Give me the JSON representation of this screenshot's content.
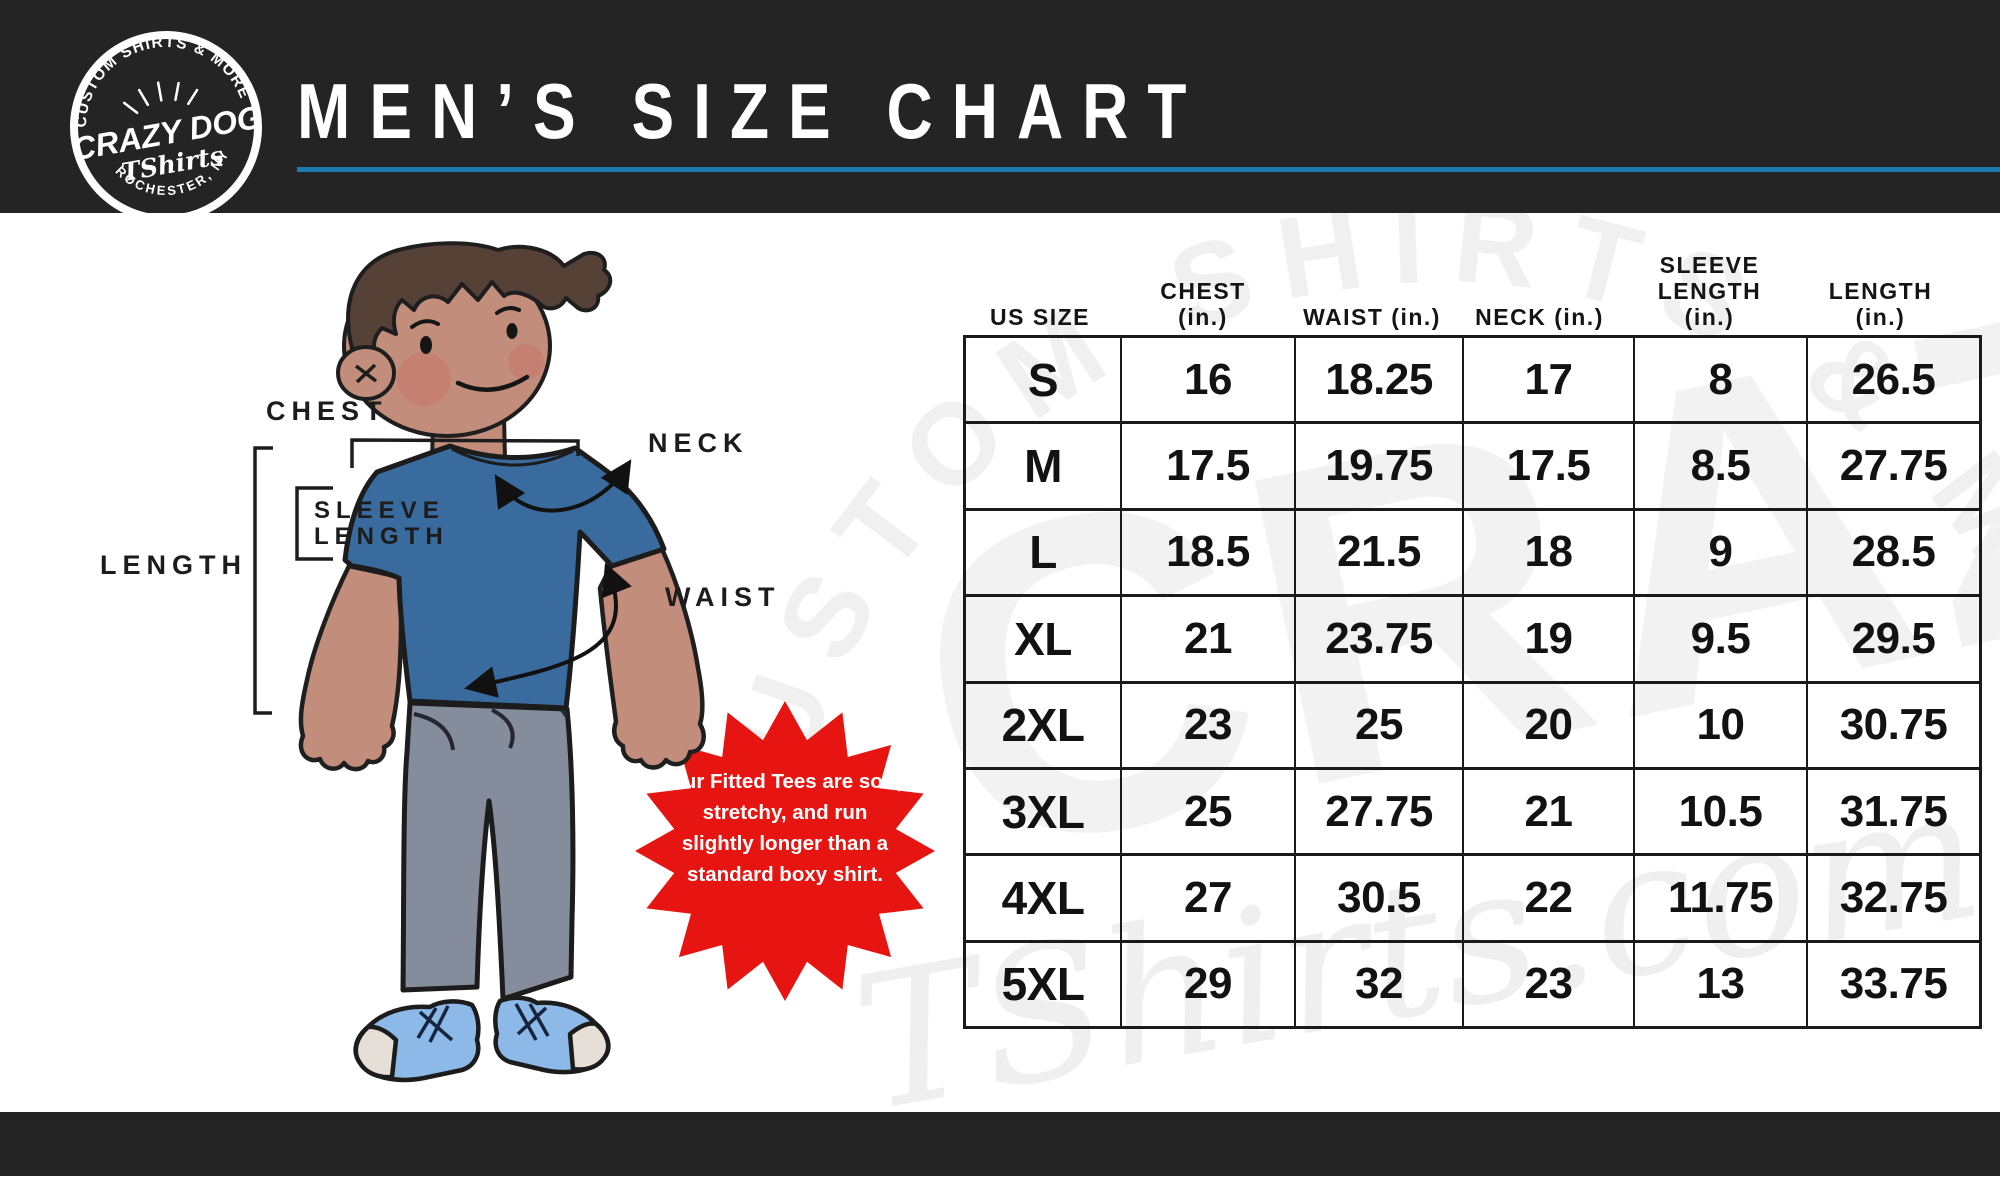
{
  "page": {
    "title": "MEN’S SIZE CHART"
  },
  "logo": {
    "arc_top": "CUSTOM SHIRTS & MORE",
    "name": "CRAZY DOG",
    "script": "TShirts",
    "arc_bottom": "ROCHESTER, NY"
  },
  "diagram": {
    "labels": {
      "chest": "CHEST",
      "neck": "NECK",
      "sleeve_length": "SLEEVE\nLENGTH",
      "length": "LENGTH",
      "waist": "WAIST"
    },
    "callout_text": "Our Fitted Tees are soft, stretchy, and run slightly longer than a standard boxy shirt."
  },
  "size_table": {
    "columns": [
      "US SIZE",
      "CHEST\n(in.)",
      "WAIST (in.)",
      "NECK (in.)",
      "SLEEVE\nLENGTH\n(in.)",
      "LENGTH\n(in.)"
    ],
    "rows": [
      [
        "S",
        "16",
        "18.25",
        "17",
        "8",
        "26.5"
      ],
      [
        "M",
        "17.5",
        "19.75",
        "17.5",
        "8.5",
        "27.75"
      ],
      [
        "L",
        "18.5",
        "21.5",
        "18",
        "9",
        "28.5"
      ],
      [
        "XL",
        "21",
        "23.75",
        "19",
        "9.5",
        "29.5"
      ],
      [
        "2XL",
        "23",
        "25",
        "20",
        "10",
        "30.75"
      ],
      [
        "3XL",
        "25",
        "27.75",
        "21",
        "10.5",
        "31.75"
      ],
      [
        "4XL",
        "27",
        "30.5",
        "22",
        "11.75",
        "32.75"
      ],
      [
        "5XL",
        "29",
        "32",
        "23",
        "13",
        "33.75"
      ]
    ]
  },
  "watermark": {
    "arc_text": "CUSTOM SHIRTS & MORE",
    "big_text": "CRAZY",
    "script_text": "TShirts.com"
  },
  "colors": {
    "header_bg": "#242424",
    "accent_line": "#1e7bb0",
    "star_red": "#e61511",
    "shirt_blue": "#3a6b9e",
    "pants_gray": "#858c9b",
    "shoe_blue": "#8cb9e8",
    "skin": "#c28d7b",
    "hair": "#564137"
  }
}
